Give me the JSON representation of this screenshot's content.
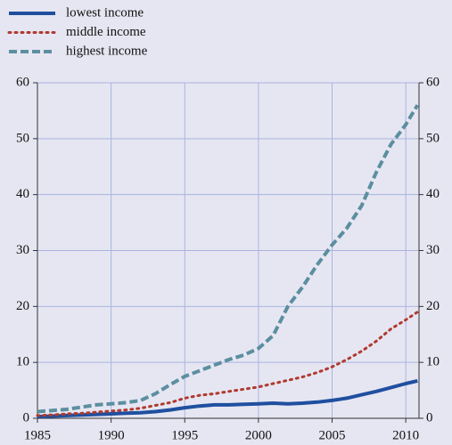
{
  "chart_data": {
    "type": "line",
    "x": [
      1985,
      1986,
      1987,
      1988,
      1989,
      1990,
      1991,
      1992,
      1993,
      1994,
      1995,
      1996,
      1997,
      1998,
      1999,
      2000,
      2001,
      2002,
      2003,
      2004,
      2005,
      2006,
      2007,
      2008,
      2009,
      2010,
      2010.8
    ],
    "series": [
      {
        "name": "lowest income",
        "color": "#1f4f9f",
        "style": "solid",
        "values": [
          0.3,
          0.4,
          0.5,
          0.6,
          0.7,
          0.8,
          0.9,
          1.0,
          1.2,
          1.5,
          1.9,
          2.2,
          2.4,
          2.4,
          2.5,
          2.6,
          2.7,
          2.6,
          2.7,
          2.9,
          3.2,
          3.6,
          4.2,
          4.8,
          5.5,
          6.2,
          6.7
        ]
      },
      {
        "name": "middle income",
        "color": "#b03a2e",
        "style": "dotted",
        "values": [
          0.5,
          0.6,
          0.8,
          0.9,
          1.1,
          1.3,
          1.5,
          1.8,
          2.3,
          2.8,
          3.6,
          4.1,
          4.4,
          4.8,
          5.2,
          5.6,
          6.2,
          6.8,
          7.4,
          8.2,
          9.2,
          10.5,
          12,
          13.8,
          16,
          17.6,
          19
        ]
      },
      {
        "name": "highest income",
        "color": "#5b8fa0",
        "style": "dashed",
        "values": [
          1.2,
          1.4,
          1.6,
          2.0,
          2.4,
          2.6,
          2.8,
          3.2,
          4.4,
          6.0,
          7.5,
          8.5,
          9.5,
          10.5,
          11.3,
          12.5,
          14.8,
          20,
          23.5,
          27.5,
          31,
          34,
          38,
          44,
          49,
          52.5,
          56
        ]
      }
    ],
    "xlim": [
      1985,
      2010.9
    ],
    "xticks": [
      1985,
      1990,
      1995,
      2000,
      2005,
      2010
    ],
    "ylim": [
      0,
      60
    ],
    "yticks": [
      0,
      10,
      20,
      30,
      40,
      50,
      60
    ],
    "y2lim": [
      0,
      60
    ],
    "y2ticks": [
      0,
      10,
      20,
      30,
      40,
      50,
      60
    ],
    "grid": true,
    "legend": "top-left"
  }
}
